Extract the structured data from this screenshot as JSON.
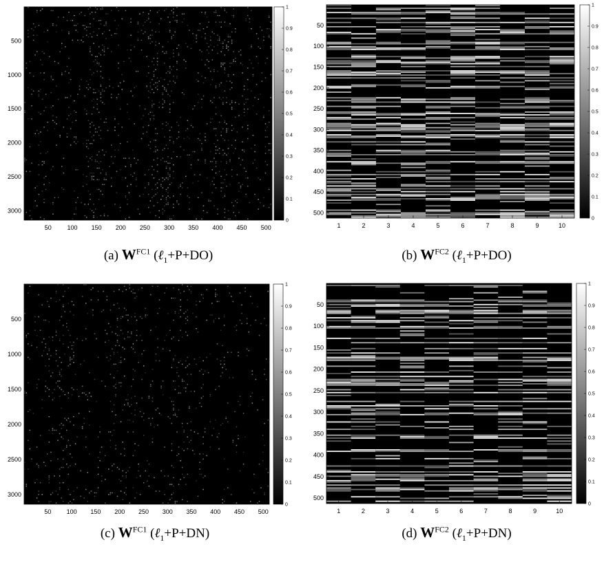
{
  "chart_data": [
    {
      "type": "heatmap",
      "panel_label": "(a)",
      "caption_symbol": "W",
      "caption_superscript": "FC1",
      "caption_ell": "ℓ",
      "caption_sub": "1",
      "caption_rest": "+P+DO)",
      "caption_open": "(",
      "xlim": [
        0.5,
        512.5
      ],
      "ylim": [
        0.5,
        3136.5
      ],
      "x_ticks": [
        "50",
        "100",
        "150",
        "200",
        "250",
        "300",
        "350",
        "400",
        "450",
        "500"
      ],
      "y_ticks": [
        "500",
        "1000",
        "1500",
        "2000",
        "2500",
        "3000"
      ],
      "colorbar_ticks": [
        "0",
        "0.1",
        "0.2",
        "0.3",
        "0.4",
        "0.5",
        "0.6",
        "0.7",
        "0.8",
        "0.9",
        "1"
      ],
      "colormap": "gray",
      "clim": [
        0,
        1
      ],
      "pattern": "sparse",
      "density": 0.05,
      "column_stripes": [
        [
          0.25,
          0.33
        ],
        [
          0.5,
          0.6
        ],
        [
          0.75,
          0.85
        ]
      ]
    },
    {
      "type": "heatmap",
      "panel_label": "(b)",
      "caption_symbol": "W",
      "caption_superscript": "FC2",
      "caption_ell": "ℓ",
      "caption_sub": "1",
      "caption_rest": "+P+DO)",
      "caption_open": "(",
      "xlim": [
        0.5,
        10.5
      ],
      "ylim": [
        0.5,
        512.5
      ],
      "x_ticks": [
        "1",
        "2",
        "3",
        "4",
        "5",
        "6",
        "7",
        "8",
        "9",
        "10"
      ],
      "y_ticks": [
        "50",
        "100",
        "150",
        "200",
        "250",
        "300",
        "350",
        "400",
        "450",
        "500"
      ],
      "colorbar_ticks": [
        "0",
        "0.1",
        "0.2",
        "0.3",
        "0.4",
        "0.5",
        "0.6",
        "0.7",
        "0.8",
        "0.9",
        "1"
      ],
      "colormap": "gray",
      "clim": [
        0,
        1
      ],
      "pattern": "banded",
      "density": 0.45
    },
    {
      "type": "heatmap",
      "panel_label": "(c)",
      "caption_symbol": "W",
      "caption_superscript": "FC1",
      "caption_ell": "ℓ",
      "caption_sub": "1",
      "caption_rest": "+P+DN)",
      "caption_open": "(",
      "xlim": [
        0.5,
        512.5
      ],
      "ylim": [
        0.5,
        3136.5
      ],
      "x_ticks": [
        "50",
        "100",
        "150",
        "200",
        "250",
        "300",
        "350",
        "400",
        "450",
        "500"
      ],
      "y_ticks": [
        "500",
        "1000",
        "1500",
        "2000",
        "2500",
        "3000"
      ],
      "colorbar_ticks": [
        "0",
        "0.1",
        "0.2",
        "0.3",
        "0.4",
        "0.5",
        "0.6",
        "0.7",
        "0.8",
        "0.9",
        "1"
      ],
      "colormap": "gray",
      "clim": [
        0,
        1
      ],
      "pattern": "sparse",
      "density": 0.035,
      "column_stripes": [
        [
          0.1,
          0.2
        ],
        [
          0.35,
          0.45
        ],
        [
          0.6,
          0.68
        ]
      ]
    },
    {
      "type": "heatmap",
      "panel_label": "(d)",
      "caption_symbol": "W",
      "caption_superscript": "FC2",
      "caption_ell": "ℓ",
      "caption_sub": "1",
      "caption_rest": "+P+DN)",
      "caption_open": "(",
      "xlim": [
        0.5,
        10.5
      ],
      "ylim": [
        0.5,
        512.5
      ],
      "x_ticks": [
        "1",
        "2",
        "3",
        "4",
        "5",
        "6",
        "7",
        "8",
        "9",
        "10"
      ],
      "y_ticks": [
        "50",
        "100",
        "150",
        "200",
        "250",
        "300",
        "350",
        "400",
        "450",
        "500"
      ],
      "colorbar_ticks": [
        "0",
        "0.1",
        "0.2",
        "0.3",
        "0.4",
        "0.5",
        "0.6",
        "0.7",
        "0.8",
        "0.9",
        "1"
      ],
      "colormap": "gray",
      "clim": [
        0,
        1
      ],
      "pattern": "banded",
      "density": 0.35
    }
  ]
}
